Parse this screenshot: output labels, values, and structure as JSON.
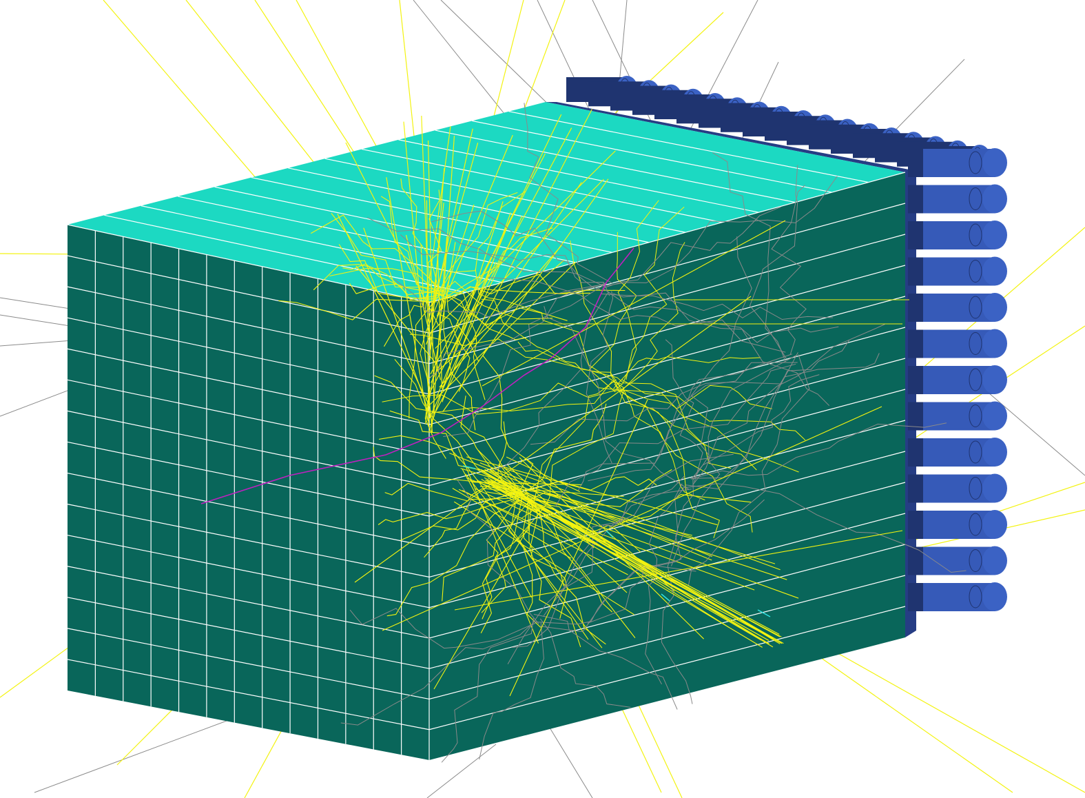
{
  "scene": {
    "background": "#ffffff",
    "colors": {
      "top_face": "#1cd9c2",
      "front_face": "#09665a",
      "grid_line": "#ffffff",
      "pmt_body": "#3b62c4",
      "pmt_dark": "#1f3470",
      "pmt_back": "#263d84",
      "track_yellow": "#f3f310",
      "track_gray": "#8a8a8a",
      "track_magenta": "#c020c0",
      "track_cyan": "#30e0e0"
    },
    "detector": {
      "pmt_rows": 13,
      "pmt_cols_top": 17,
      "front_left_columns": 13,
      "front_right_rows": 15
    }
  }
}
